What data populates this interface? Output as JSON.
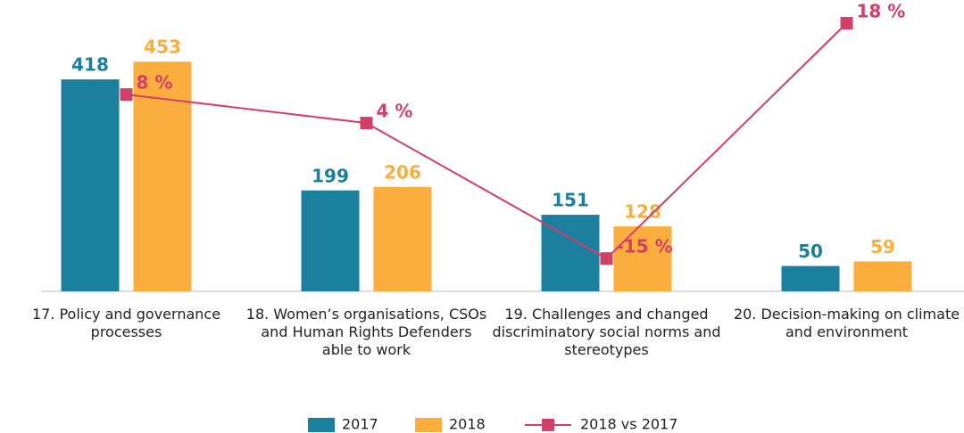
{
  "chart_data": {
    "type": "bar",
    "categories": [
      "17. Policy and governance processes",
      "18. Women’s organisations, CSOs and Human Rights Defenders able to work",
      "19. Challenges and changed discriminatory social norms and stereotypes",
      "20. Decision-making on climate and environment"
    ],
    "series": [
      {
        "name": "2017",
        "type": "bar",
        "color": "#1b7f9e",
        "values": [
          418,
          199,
          151,
          50
        ]
      },
      {
        "name": "2018",
        "type": "bar",
        "color": "#f9ae3d",
        "values": [
          453,
          206,
          128,
          59
        ]
      },
      {
        "name": "2018 vs 2017",
        "type": "line",
        "axis": "y2",
        "color": "#d23f67",
        "values": [
          8,
          4,
          -15,
          18
        ],
        "value_labels": [
          "8 %",
          "4 %",
          "-15 %",
          "18 %"
        ]
      }
    ],
    "ylim": [
      0,
      550
    ],
    "y2lim": [
      -19.6,
      19.5
    ],
    "legend": "bottom"
  }
}
